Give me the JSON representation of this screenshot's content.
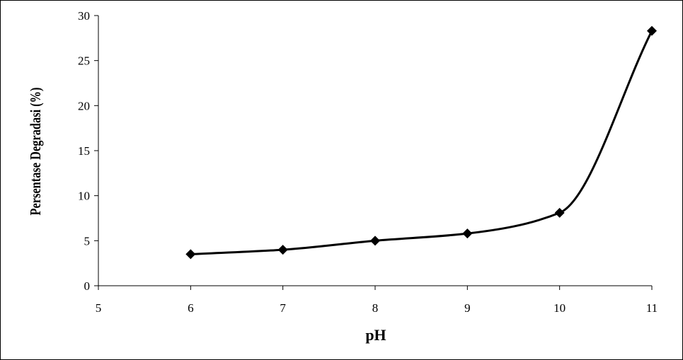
{
  "chart_data": {
    "type": "line",
    "title": "",
    "xlabel": "pH",
    "ylabel": "Persentase Degradasi (%)",
    "xlim": [
      5,
      11
    ],
    "ylim": [
      0,
      30
    ],
    "x_ticks": [
      "5",
      "6",
      "7",
      "8",
      "9",
      "10",
      "11"
    ],
    "y_ticks": [
      "0",
      "5",
      "10",
      "15",
      "20",
      "25",
      "30"
    ],
    "grid": false,
    "legend": "none",
    "smooth": true,
    "marker": "diamond",
    "line_color": "#000000",
    "series": [
      {
        "x": [
          6,
          7,
          8,
          9,
          10,
          11
        ],
        "values": [
          3.5,
          4.0,
          5.0,
          5.8,
          8.1,
          28.3
        ]
      }
    ]
  }
}
